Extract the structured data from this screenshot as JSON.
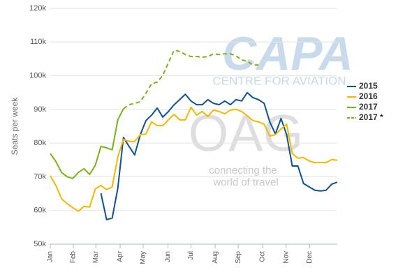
{
  "chart_data": {
    "type": "line",
    "y_label": "Seats per week",
    "annotations": [
      "CAPA",
      "CENTRE FOR AVIATION",
      "OAG",
      "connecting the",
      "world of travel"
    ],
    "x": [
      1,
      2,
      3,
      4,
      5,
      6,
      7,
      8,
      9,
      10,
      11,
      12,
      13,
      14,
      15,
      16,
      17,
      18,
      19,
      20,
      21,
      22,
      23,
      24,
      25,
      26,
      27,
      28,
      29,
      30,
      31,
      32,
      33,
      34,
      35,
      36,
      37,
      38,
      39,
      40,
      41,
      42,
      43,
      44,
      45,
      46,
      47,
      48,
      49,
      50,
      51,
      52
    ],
    "xlim": [
      1,
      52
    ],
    "xticks": [
      {
        "value": 1,
        "label": "Jan"
      },
      {
        "value": 5.1,
        "label": "Feb"
      },
      {
        "value": 9.1,
        "label": "Mar"
      },
      {
        "value": 13.4,
        "label": "Apr"
      },
      {
        "value": 17.5,
        "label": "May"
      },
      {
        "value": 21.9,
        "label": "Jun"
      },
      {
        "value": 26,
        "label": "Jul"
      },
      {
        "value": 30.3,
        "label": "Aug"
      },
      {
        "value": 34.4,
        "label": "Sep"
      },
      {
        "value": 38.7,
        "label": "Oct"
      },
      {
        "value": 42.9,
        "label": "Nov"
      },
      {
        "value": 47.1,
        "label": "Dec"
      }
    ],
    "ylim": [
      50000,
      120000
    ],
    "yticks": [
      {
        "value": 50000,
        "label": "50k"
      },
      {
        "value": 60000,
        "label": "60k"
      },
      {
        "value": 70000,
        "label": "70k"
      },
      {
        "value": 80000,
        "label": "80k"
      },
      {
        "value": 90000,
        "label": "90k"
      },
      {
        "value": 100000,
        "label": "100k"
      },
      {
        "value": 110000,
        "label": "110k"
      },
      {
        "value": 120000,
        "label": "120k"
      }
    ],
    "grid": true,
    "legend": "right",
    "series": [
      {
        "name": "2015",
        "color": "#0b5394",
        "dash": false,
        "values": [
          null,
          null,
          null,
          null,
          null,
          null,
          null,
          null,
          null,
          65100,
          57300,
          57700,
          66600,
          81700,
          79000,
          76500,
          82500,
          86700,
          88300,
          90400,
          87700,
          89400,
          91400,
          92900,
          94500,
          92500,
          91400,
          91400,
          92900,
          91800,
          91400,
          92500,
          91400,
          92900,
          92500,
          95000,
          93500,
          92900,
          91800,
          86300,
          82700,
          87300,
          82500,
          73200,
          73200,
          68000,
          67000,
          66000,
          65800,
          66000,
          67800,
          68400
        ]
      },
      {
        "name": "2016",
        "color": "#f5b800",
        "dash": false,
        "values": [
          70300,
          67400,
          63500,
          62000,
          60800,
          59800,
          61200,
          61000,
          66400,
          67400,
          66200,
          67000,
          75900,
          81100,
          80500,
          80500,
          82500,
          82700,
          86300,
          85200,
          85200,
          86900,
          88500,
          86900,
          86900,
          90600,
          88300,
          89400,
          87900,
          89800,
          89400,
          88700,
          89800,
          90000,
          89400,
          88100,
          86700,
          86300,
          85600,
          82100,
          82500,
          84200,
          85600,
          76900,
          75500,
          75700,
          74700,
          74200,
          74200,
          74200,
          75100,
          74900
        ]
      },
      {
        "name": "2017",
        "color": "#7ab317",
        "dash": false,
        "values": [
          76900,
          74500,
          71300,
          70000,
          69500,
          71300,
          72400,
          70700,
          73400,
          79000,
          78600,
          78000,
          86900,
          90200,
          null,
          null,
          null,
          null,
          null,
          null,
          null,
          null,
          null,
          null,
          null,
          null,
          null,
          null,
          null,
          null,
          null,
          null,
          null,
          null,
          null,
          null,
          null,
          null,
          null,
          null,
          null,
          null,
          null,
          null,
          null,
          null,
          null,
          null,
          null,
          null,
          null,
          null
        ]
      },
      {
        "name": "2017 *",
        "color": "#7ab317",
        "dash": true,
        "values": [
          null,
          null,
          null,
          null,
          null,
          null,
          null,
          null,
          null,
          null,
          null,
          null,
          null,
          90200,
          91400,
          91800,
          92300,
          94800,
          97600,
          98100,
          100100,
          103900,
          107600,
          107200,
          106300,
          105700,
          105700,
          105500,
          105700,
          106500,
          106300,
          106500,
          106500,
          105900,
          104700,
          104300,
          103200,
          103200,
          null,
          null,
          null,
          null,
          null,
          null,
          null,
          null,
          null,
          null,
          null,
          null,
          null,
          null
        ]
      }
    ]
  }
}
